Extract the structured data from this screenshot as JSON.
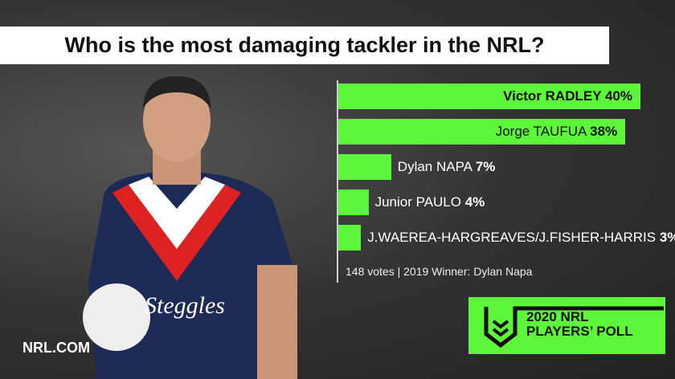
{
  "title": "Who is the most damaging tackler in the NRL?",
  "chart_data": {
    "type": "bar",
    "orientation": "horizontal",
    "categories": [
      "Victor RADLEY",
      "Jorge TAUFUA",
      "Dylan NAPA",
      "Junior PAULO",
      "J.WAEREA-HARGREAVES/J.FISHER-HARRIS"
    ],
    "values": [
      40,
      38,
      7,
      4,
      3
    ],
    "value_labels": [
      "40%",
      "38%",
      "7%",
      "4%",
      "3%"
    ],
    "bar_color": "#5ef63a",
    "grid": false
  },
  "footnote": "148 votes | 2019 Winner: Dylan Napa",
  "brand": "NRL.COM",
  "badge": {
    "line1": "2020 NRL",
    "line2": "PLAYERS’ POLL"
  }
}
